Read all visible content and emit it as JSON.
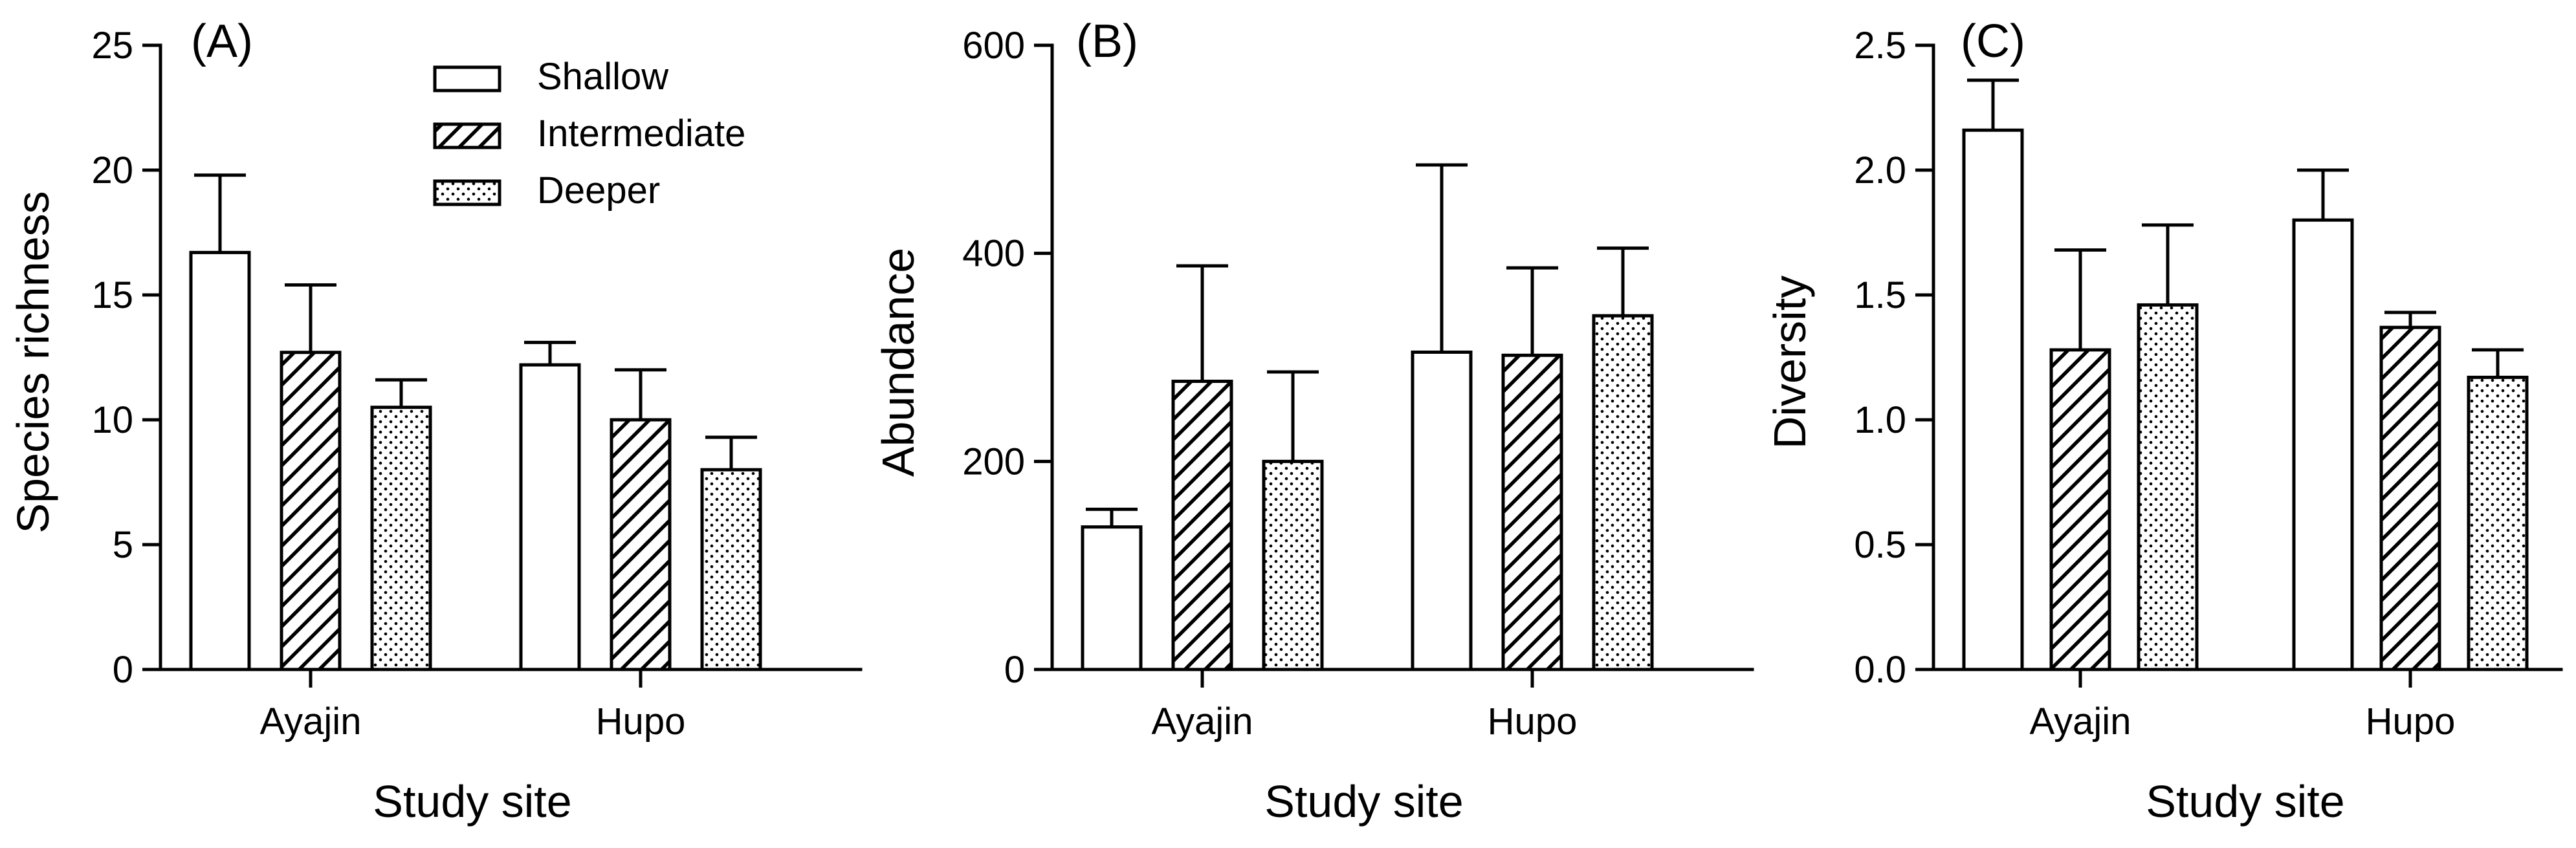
{
  "legend": {
    "items": [
      {
        "label": "Shallow",
        "pattern": "open"
      },
      {
        "label": "Intermediate",
        "pattern": "hatch"
      },
      {
        "label": "Deeper",
        "pattern": "dots"
      }
    ]
  },
  "colors": {
    "bar_fill": "#ffffff",
    "ink": "#000000"
  },
  "chart_data": [
    {
      "type": "bar",
      "panel_label": "(A)",
      "xlabel": "Study site",
      "ylabel": "Species richness",
      "categories": [
        "Ayajin",
        "Hupo"
      ],
      "ylim": [
        0,
        25
      ],
      "yticks": [
        "0",
        "5",
        "10",
        "15",
        "20",
        "25"
      ],
      "series": [
        {
          "name": "Shallow",
          "values": [
            16.7,
            12.2
          ],
          "error": [
            3.1,
            0.9
          ]
        },
        {
          "name": "Intermediate",
          "values": [
            12.7,
            10.0
          ],
          "error": [
            2.7,
            2.0
          ]
        },
        {
          "name": "Deeper",
          "values": [
            10.5,
            8.0
          ],
          "error": [
            1.1,
            1.3
          ]
        }
      ]
    },
    {
      "type": "bar",
      "panel_label": "(B)",
      "xlabel": "Study site",
      "ylabel": "Abundance",
      "categories": [
        "Ayajin",
        "Hupo"
      ],
      "ylim": [
        0,
        600
      ],
      "yticks": [
        "0",
        "200",
        "400",
        "600"
      ],
      "series": [
        {
          "name": "Shallow",
          "values": [
            137,
            305
          ],
          "error": [
            17,
            180
          ]
        },
        {
          "name": "Intermediate",
          "values": [
            277,
            302
          ],
          "error": [
            111,
            84
          ]
        },
        {
          "name": "Deeper",
          "values": [
            200,
            340
          ],
          "error": [
            86,
            65
          ]
        }
      ]
    },
    {
      "type": "bar",
      "panel_label": "(C)",
      "xlabel": "Study site",
      "ylabel": "Diversity",
      "categories": [
        "Ayajin",
        "Hupo"
      ],
      "ylim": [
        0,
        2.5
      ],
      "yticks": [
        "0.0",
        "0.5",
        "1.0",
        "1.5",
        "2.0",
        "2.5"
      ],
      "series": [
        {
          "name": "Shallow",
          "values": [
            2.16,
            1.8
          ],
          "error": [
            0.2,
            0.2
          ]
        },
        {
          "name": "Intermediate",
          "values": [
            1.28,
            1.37
          ],
          "error": [
            0.4,
            0.06
          ]
        },
        {
          "name": "Deeper",
          "values": [
            1.46,
            1.17
          ],
          "error": [
            0.32,
            0.11
          ]
        }
      ]
    }
  ]
}
